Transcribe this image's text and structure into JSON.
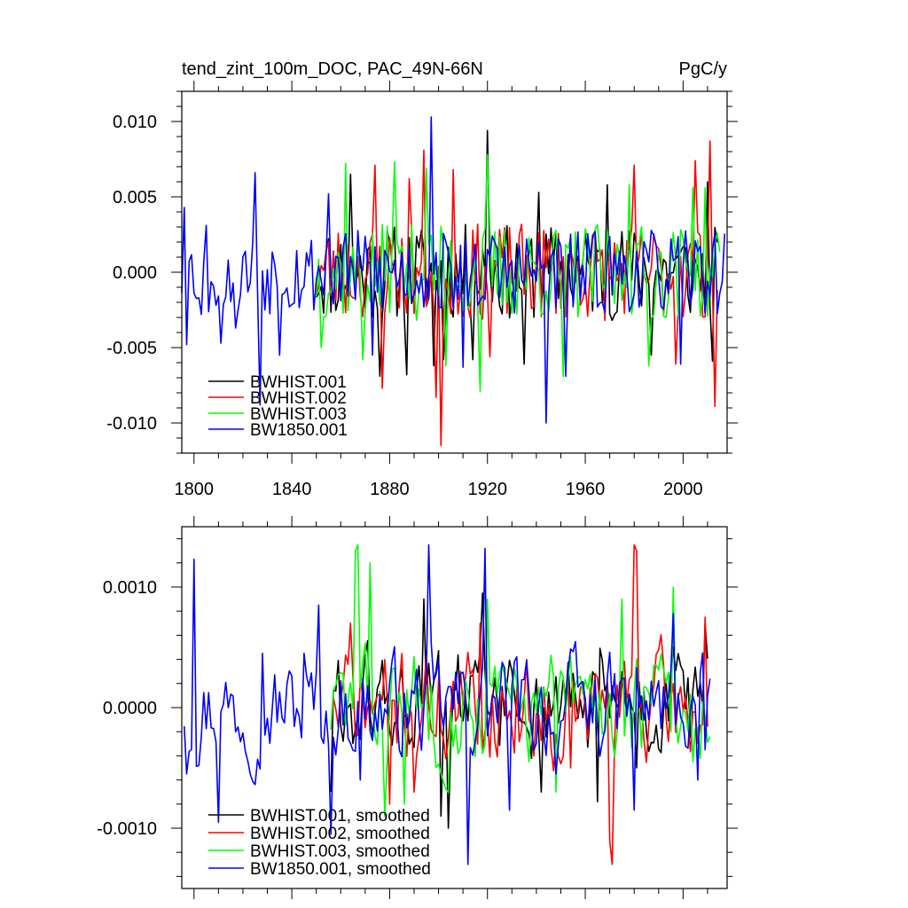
{
  "chart_data": [
    {
      "type": "line",
      "title_left": "tend_zint_100m_DOC, PAC_49N-66N",
      "title_right": "PgC/y",
      "xlim": [
        1795,
        2018
      ],
      "ylim": [
        -0.012,
        0.012
      ],
      "y_ticks": [
        0.01,
        0.005,
        0.0,
        -0.005,
        -0.01
      ],
      "y_tick_labels": [
        "0.010",
        "0.005",
        "0.000",
        "-0.005",
        "-0.010"
      ],
      "x_ticks": [
        1800,
        1840,
        1880,
        1920,
        1960,
        2000
      ],
      "x_tick_labels": [
        "1800",
        "1840",
        "1880",
        "1920",
        "1960",
        "2000"
      ],
      "legend": [
        "BWHIST.001",
        "BWHIST.002",
        "BWHIST.003",
        "BW1850.001"
      ],
      "series": [
        {
          "name": "BWHIST.001",
          "color": "#000000",
          "start": 1850,
          "count": 165,
          "amp": 0.0032,
          "seed": 11,
          "noise": "white",
          "spikes": [
            [
              1864,
              0.0065
            ],
            [
              1876,
              -0.0069
            ],
            [
              1887,
              -0.0068
            ],
            [
              1898,
              -0.0062
            ],
            [
              1902,
              -0.0058
            ],
            [
              1914,
              -0.0058
            ],
            [
              1920,
              0.0094
            ],
            [
              1935,
              -0.0061
            ],
            [
              1941,
              0.0053
            ],
            [
              1969,
              0.0058
            ],
            [
              1987,
              -0.0055
            ],
            [
              2010,
              0.006
            ],
            [
              2012,
              -0.0059
            ]
          ]
        },
        {
          "name": "BWHIST.002",
          "color": "#ff0000",
          "start": 1850,
          "count": 165,
          "amp": 0.0032,
          "seed": 23,
          "noise": "white",
          "spikes": [
            [
              1874,
              0.0071
            ],
            [
              1877,
              -0.0077
            ],
            [
              1888,
              0.0062
            ],
            [
              1894,
              0.0081
            ],
            [
              1899,
              -0.0083
            ],
            [
              1901,
              -0.0115
            ],
            [
              1906,
              0.0068
            ],
            [
              1921,
              -0.0056
            ],
            [
              1980,
              0.0071
            ],
            [
              1997,
              -0.0061
            ],
            [
              2005,
              0.0074
            ],
            [
              2011,
              0.0087
            ],
            [
              2013,
              -0.0089
            ]
          ]
        },
        {
          "name": "BWHIST.003",
          "color": "#00ff00",
          "start": 1850,
          "count": 166,
          "amp": 0.0032,
          "seed": 37,
          "noise": "white",
          "spikes": [
            [
              1852,
              -0.005
            ],
            [
              1862,
              0.0072
            ],
            [
              1869,
              -0.0058
            ],
            [
              1882,
              0.0073
            ],
            [
              1895,
              0.0069
            ],
            [
              1903,
              -0.0062
            ],
            [
              1917,
              -0.0079
            ],
            [
              1920,
              0.0078
            ],
            [
              1951,
              -0.0069
            ],
            [
              1978,
              0.0058
            ],
            [
              1986,
              -0.0062
            ],
            [
              2004,
              0.0056
            ],
            [
              2009,
              0.0056
            ]
          ]
        },
        {
          "name": "BW1850.001",
          "color": "#0000ff",
          "start": 1795,
          "count": 223,
          "amp": 0.0028,
          "seed": 53,
          "noise": "white",
          "spikes": [
            [
              1796,
              0.0043
            ],
            [
              1797,
              -0.0048
            ],
            [
              1803,
              -0.0028
            ],
            [
              1805,
              0.0031
            ],
            [
              1811,
              -0.0047
            ],
            [
              1817,
              -0.0037
            ],
            [
              1825,
              0.0066
            ],
            [
              1827,
              -0.0088
            ],
            [
              1835,
              -0.0055
            ],
            [
              1855,
              0.0052
            ],
            [
              1873,
              -0.0055
            ],
            [
              1897,
              0.0103
            ],
            [
              1910,
              -0.0063
            ],
            [
              1944,
              -0.01
            ],
            [
              1952,
              -0.0069
            ],
            [
              1999,
              -0.0061
            ],
            [
              2018,
              0.0034
            ]
          ]
        }
      ]
    },
    {
      "type": "line",
      "xlim": [
        1795,
        2018
      ],
      "ylim": [
        -0.0015,
        0.0015
      ],
      "y_ticks": [
        0.001,
        0.0,
        -0.001
      ],
      "y_tick_labels": [
        "0.0010",
        "0.0000",
        "-0.0010"
      ],
      "legend": [
        "BWHIST.001, smoothed",
        "BWHIST.002, smoothed",
        "BWHIST.003, smoothed",
        "BW1850.001, smoothed"
      ],
      "series": [
        {
          "name": "BWHIST.001, smoothed",
          "color": "#000000",
          "start": 1856,
          "count": 155,
          "amp": 0.00042,
          "seed": 61,
          "noise": "smooth",
          "spikes": [
            [
              1856,
              -0.0007
            ],
            [
              1894,
              0.0009
            ],
            [
              1901,
              -0.0009
            ],
            [
              1904,
              -0.001
            ],
            [
              1918,
              0.00095
            ],
            [
              1942,
              -0.0007
            ],
            [
              1965,
              -0.00078
            ],
            [
              1981,
              -0.0005
            ],
            [
              1996,
              0.0005
            ],
            [
              2009,
              0.0007
            ]
          ]
        },
        {
          "name": "BWHIST.002, smoothed",
          "color": "#ff0000",
          "start": 1856,
          "count": 155,
          "amp": 0.00042,
          "seed": 71,
          "noise": "smooth",
          "spikes": [
            [
              1864,
              0.0007
            ],
            [
              1880,
              -0.0008
            ],
            [
              1890,
              -0.0007
            ],
            [
              1917,
              0.0007
            ],
            [
              1954,
              -0.0005
            ],
            [
              1970,
              -0.0011
            ],
            [
              1971,
              -0.0013
            ],
            [
              1980,
              0.00135
            ],
            [
              1981,
              0.0013
            ],
            [
              2009,
              0.00075
            ]
          ]
        },
        {
          "name": "BWHIST.003, smoothed",
          "color": "#00ff00",
          "start": 1856,
          "count": 156,
          "amp": 0.00042,
          "seed": 83,
          "noise": "smooth",
          "spikes": [
            [
              1866,
              0.0013
            ],
            [
              1867,
              0.00135
            ],
            [
              1872,
              0.0012
            ],
            [
              1878,
              -0.0009
            ],
            [
              1886,
              -0.0008
            ],
            [
              1920,
              0.0009
            ],
            [
              1948,
              -0.0007
            ],
            [
              1975,
              0.0009
            ],
            [
              1996,
              0.001
            ],
            [
              2004,
              -0.00045
            ]
          ]
        },
        {
          "name": "BW1850.001, smoothed",
          "color": "#0000ff",
          "start": 1796,
          "count": 216,
          "amp": 0.00038,
          "seed": 97,
          "noise": "smooth",
          "spikes": [
            [
              1797,
              -0.00055
            ],
            [
              1800,
              0.00123
            ],
            [
              1810,
              -0.00095
            ],
            [
              1828,
              0.00045
            ],
            [
              1845,
              0.00045
            ],
            [
              1851,
              0.00085
            ],
            [
              1856,
              -0.00105
            ],
            [
              1868,
              -0.0006
            ],
            [
              1896,
              0.00135
            ],
            [
              1912,
              -0.0013
            ],
            [
              1919,
              0.00132
            ],
            [
              1929,
              -0.00085
            ],
            [
              1948,
              -0.00055
            ],
            [
              1980,
              -0.00085
            ],
            [
              1996,
              0.00078
            ],
            [
              2006,
              -0.0006
            ],
            [
              2009,
              -0.00035
            ]
          ]
        }
      ]
    }
  ]
}
